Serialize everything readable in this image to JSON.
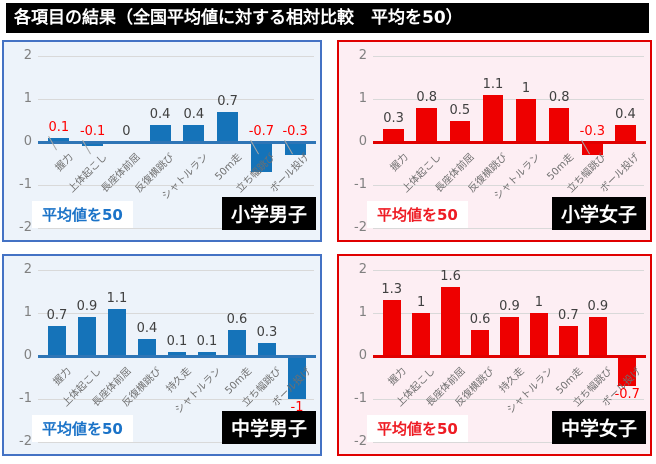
{
  "title": "各項目の結果（全国平均値に対する相対比較　平均を50）",
  "colors": {
    "grid": "#d9d9d9",
    "tick_text": "#808080",
    "category_text": "#6f6f6f",
    "value_label": "#404040",
    "negative_label": "#ff0000",
    "leader": "#a6a6a6",
    "title_bg": "#000000",
    "title_text": "#ffffff",
    "name_box_bg": "#000000",
    "name_box_text": "#ffffff",
    "themes": {
      "blue": {
        "bar": "#1573b9",
        "axis": "#2e75b6",
        "border": "#4472c4",
        "panel_bg": "#edf3fa",
        "note_text": "#1b73c8"
      },
      "red": {
        "bar": "#ee0000",
        "axis": "#e00000",
        "border": "#e00000",
        "panel_bg": "#fdeef3",
        "note_text": "#ee1c24"
      }
    }
  },
  "chart_data": [
    {
      "type": "bar",
      "group": "小学男子",
      "note": "平均値を50",
      "theme": "blue",
      "ylim": [
        -2,
        2
      ],
      "yticks": [
        2,
        1,
        0,
        -1,
        -2
      ],
      "categories": [
        "握力",
        "上体起こし",
        "長座体前屈",
        "反復横跳び",
        "シャトルラン",
        "50m走",
        "立ち幅跳び",
        "ボール投げ"
      ],
      "values": [
        0.1,
        -0.1,
        0,
        0.4,
        0.4,
        0.7,
        -0.7,
        -0.3
      ],
      "label_colors": [
        "red",
        "red",
        "dark",
        "dark",
        "dark",
        "dark",
        "red",
        "red"
      ],
      "leader_lines": [
        true,
        true,
        false,
        false,
        false,
        false,
        true,
        true
      ],
      "negative_label_position": "above_axis"
    },
    {
      "type": "bar",
      "group": "小学女子",
      "note": "平均値を50",
      "theme": "red",
      "ylim": [
        -2,
        2
      ],
      "yticks": [
        2,
        1,
        0,
        -1,
        -2
      ],
      "categories": [
        "握力",
        "上体起こし",
        "長座体前屈",
        "反復横跳び",
        "シャトルラン",
        "50m走",
        "立ち幅跳び",
        "ボール投げ"
      ],
      "values": [
        0.3,
        0.8,
        0.5,
        1.1,
        1,
        0.8,
        -0.3,
        0.4
      ],
      "label_colors": [
        "dark",
        "dark",
        "dark",
        "dark",
        "dark",
        "dark",
        "red",
        "dark"
      ],
      "leader_lines": [
        false,
        false,
        false,
        false,
        false,
        false,
        true,
        false
      ],
      "negative_label_position": "above_axis"
    },
    {
      "type": "bar",
      "group": "中学男子",
      "note": "平均値を50",
      "theme": "blue",
      "ylim": [
        -2,
        2
      ],
      "yticks": [
        2,
        1,
        0,
        -1,
        -2
      ],
      "categories": [
        "握力",
        "上体起こし",
        "長座体前屈",
        "反復横跳び",
        "持久走",
        "シャトルラン",
        "50m走",
        "立ち幅跳び",
        "ボール投げ"
      ],
      "values": [
        0.7,
        0.9,
        1.1,
        0.4,
        0.1,
        0.1,
        0.6,
        0.3,
        -1
      ],
      "label_colors": [
        "dark",
        "dark",
        "dark",
        "dark",
        "dark",
        "dark",
        "dark",
        "dark",
        "red"
      ],
      "leader_lines": [
        false,
        false,
        false,
        false,
        false,
        false,
        false,
        false,
        false
      ],
      "negative_label_position": "below_bar"
    },
    {
      "type": "bar",
      "group": "中学女子",
      "note": "平均値を50",
      "theme": "red",
      "ylim": [
        -2,
        2
      ],
      "yticks": [
        2,
        1,
        0,
        -1,
        -2
      ],
      "categories": [
        "握力",
        "上体起こし",
        "長座体前屈",
        "反復横跳び",
        "持久走",
        "シャトルラン",
        "50m走",
        "立ち幅跳び",
        "ボール投げ"
      ],
      "values": [
        1.3,
        1,
        1.6,
        0.6,
        0.9,
        1,
        0.7,
        0.9,
        -0.7
      ],
      "label_colors": [
        "dark",
        "dark",
        "dark",
        "dark",
        "dark",
        "dark",
        "dark",
        "dark",
        "red"
      ],
      "leader_lines": [
        false,
        false,
        false,
        false,
        false,
        false,
        false,
        false,
        false
      ],
      "negative_label_position": "below_bar"
    }
  ]
}
